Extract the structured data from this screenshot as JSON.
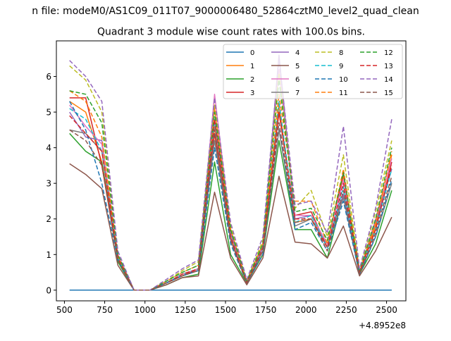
{
  "figure": {
    "suptitle": "n file: modeM0/AS1C09_011T07_9000006480_52864cztM0_level2_quad_clean",
    "offset_label": "+4.8952e8"
  },
  "chart_data": {
    "type": "line",
    "title": "Quadrant 3 module wise count rates with 100.0s bins.",
    "xlabel": "",
    "ylabel": "",
    "x_offset": 489520000,
    "xlim": [
      450,
      2620
    ],
    "ylim": [
      -0.3,
      7.0
    ],
    "xticks": [
      500,
      750,
      1000,
      1250,
      1500,
      1750,
      2000,
      2250,
      2500
    ],
    "xtick_labels": [
      "500",
      "750",
      "1000",
      "1250",
      "1500",
      "1750",
      "2000",
      "2250",
      "2500"
    ],
    "yticks": [
      0,
      1,
      2,
      3,
      4,
      5,
      6
    ],
    "ytick_labels": [
      "0",
      "1",
      "2",
      "3",
      "4",
      "5",
      "6"
    ],
    "grid": false,
    "legend_position": "top-right",
    "legend_columns": 4,
    "x": [
      532,
      632,
      732,
      832,
      932,
      1032,
      1132,
      1232,
      1332,
      1432,
      1532,
      1632,
      1732,
      1832,
      1932,
      2032,
      2132,
      2232,
      2332,
      2432,
      2532
    ],
    "series": [
      {
        "name": "0",
        "color": "#1f77b4",
        "dash": "solid",
        "values": [
          0,
          0,
          0,
          0,
          0,
          0,
          0,
          0,
          0,
          0,
          0,
          0,
          0,
          0,
          0,
          0,
          0,
          0,
          0,
          0,
          0
        ]
      },
      {
        "name": "1",
        "color": "#ff7f0e",
        "dash": "solid",
        "values": [
          5.3,
          5.0,
          3.6,
          0.9,
          0,
          0,
          0.2,
          0.4,
          0.6,
          4.6,
          1.5,
          0.2,
          1.1,
          5.2,
          1.9,
          2.0,
          1.3,
          3.2,
          0.5,
          1.8,
          3.8
        ]
      },
      {
        "name": "2",
        "color": "#2ca02c",
        "dash": "solid",
        "values": [
          4.4,
          3.9,
          3.6,
          0.8,
          0,
          0,
          0.15,
          0.35,
          0.45,
          3.6,
          1.0,
          0.2,
          1.0,
          4.2,
          1.7,
          1.7,
          0.9,
          2.7,
          0.45,
          1.3,
          2.8
        ]
      },
      {
        "name": "3",
        "color": "#d62728",
        "dash": "solid",
        "values": [
          5.4,
          5.4,
          3.5,
          0.9,
          0,
          0,
          0.2,
          0.4,
          0.6,
          4.4,
          1.4,
          0.2,
          1.2,
          5.0,
          2.1,
          2.2,
          1.2,
          3.3,
          0.5,
          1.7,
          3.6
        ]
      },
      {
        "name": "4",
        "color": "#9467bd",
        "dash": "solid",
        "values": [
          5.0,
          4.3,
          4.2,
          0.9,
          0,
          0,
          0.2,
          0.45,
          0.6,
          4.8,
          1.6,
          0.2,
          1.2,
          6.6,
          2.0,
          2.1,
          1.3,
          2.7,
          0.5,
          1.9,
          3.4
        ]
      },
      {
        "name": "5",
        "color": "#8c564b",
        "dash": "solid",
        "values": [
          3.55,
          3.25,
          2.85,
          0.7,
          0,
          0,
          0.15,
          0.35,
          0.4,
          2.75,
          0.9,
          0.15,
          0.9,
          3.2,
          1.35,
          1.3,
          0.9,
          1.8,
          0.4,
          1.1,
          2.05
        ]
      },
      {
        "name": "6",
        "color": "#e377c2",
        "dash": "solid",
        "values": [
          5.2,
          4.6,
          4.1,
          1.0,
          0,
          0,
          0.2,
          0.45,
          0.6,
          5.5,
          1.7,
          0.2,
          1.3,
          6.2,
          2.1,
          2.1,
          1.3,
          3.1,
          0.5,
          2.0,
          3.7
        ]
      },
      {
        "name": "7",
        "color": "#7f7f7f",
        "dash": "solid",
        "values": [
          4.5,
          4.4,
          3.9,
          0.9,
          0,
          0,
          0.2,
          0.4,
          0.55,
          4.2,
          1.4,
          0.2,
          1.1,
          4.5,
          1.8,
          2.0,
          1.2,
          2.6,
          0.45,
          1.5,
          3.0
        ]
      },
      {
        "name": "8",
        "color": "#bcbd22",
        "dash": "dashed",
        "values": [
          6.3,
          5.9,
          5.0,
          1.0,
          0,
          0,
          0.25,
          0.55,
          0.8,
          5.2,
          1.8,
          0.25,
          1.4,
          6.1,
          2.3,
          2.8,
          1.5,
          3.8,
          0.55,
          2.2,
          4.2
        ]
      },
      {
        "name": "9",
        "color": "#17becf",
        "dash": "dashed",
        "values": [
          5.1,
          4.8,
          3.9,
          0.9,
          0,
          0,
          0.2,
          0.45,
          0.6,
          4.7,
          1.5,
          0.2,
          1.2,
          5.3,
          1.9,
          2.1,
          1.2,
          2.9,
          0.5,
          1.7,
          3.4
        ]
      },
      {
        "name": "10",
        "color": "#1f77b4",
        "dash": "dashed",
        "values": [
          5.3,
          4.5,
          3.0,
          0.85,
          0,
          0,
          0.2,
          0.4,
          0.55,
          4.0,
          1.3,
          0.2,
          1.0,
          4.7,
          1.7,
          1.9,
          1.1,
          2.5,
          0.45,
          1.5,
          3.1
        ]
      },
      {
        "name": "11",
        "color": "#ff7f0e",
        "dash": "dashed",
        "values": [
          5.6,
          5.3,
          4.3,
          0.95,
          0,
          0,
          0.25,
          0.5,
          0.7,
          5.1,
          1.7,
          0.25,
          1.3,
          5.5,
          2.5,
          2.5,
          1.3,
          3.4,
          0.5,
          1.9,
          3.9
        ]
      },
      {
        "name": "12",
        "color": "#2ca02c",
        "dash": "dashed",
        "values": [
          5.6,
          5.5,
          4.7,
          1.0,
          0,
          0,
          0.25,
          0.5,
          0.7,
          5.0,
          1.7,
          0.25,
          1.3,
          5.9,
          2.2,
          2.3,
          1.4,
          3.3,
          0.5,
          2.0,
          4.0
        ]
      },
      {
        "name": "13",
        "color": "#d62728",
        "dash": "dashed",
        "values": [
          4.9,
          4.4,
          3.9,
          0.9,
          0,
          0,
          0.2,
          0.45,
          0.6,
          4.8,
          1.5,
          0.2,
          1.2,
          5.0,
          2.0,
          2.0,
          1.2,
          3.0,
          0.5,
          1.7,
          3.5
        ]
      },
      {
        "name": "14",
        "color": "#9467bd",
        "dash": "dashed",
        "values": [
          6.45,
          6.0,
          5.3,
          1.1,
          0,
          0,
          0.3,
          0.6,
          0.85,
          5.4,
          1.9,
          0.3,
          1.5,
          6.5,
          2.4,
          2.5,
          1.6,
          4.6,
          0.6,
          2.3,
          4.8
        ]
      },
      {
        "name": "15",
        "color": "#8c564b",
        "dash": "dashed",
        "values": [
          4.5,
          4.2,
          3.5,
          0.85,
          0,
          0,
          0.2,
          0.4,
          0.55,
          4.5,
          1.4,
          0.2,
          1.1,
          4.7,
          1.9,
          2.0,
          1.1,
          2.8,
          0.45,
          1.6,
          3.2
        ]
      }
    ]
  }
}
